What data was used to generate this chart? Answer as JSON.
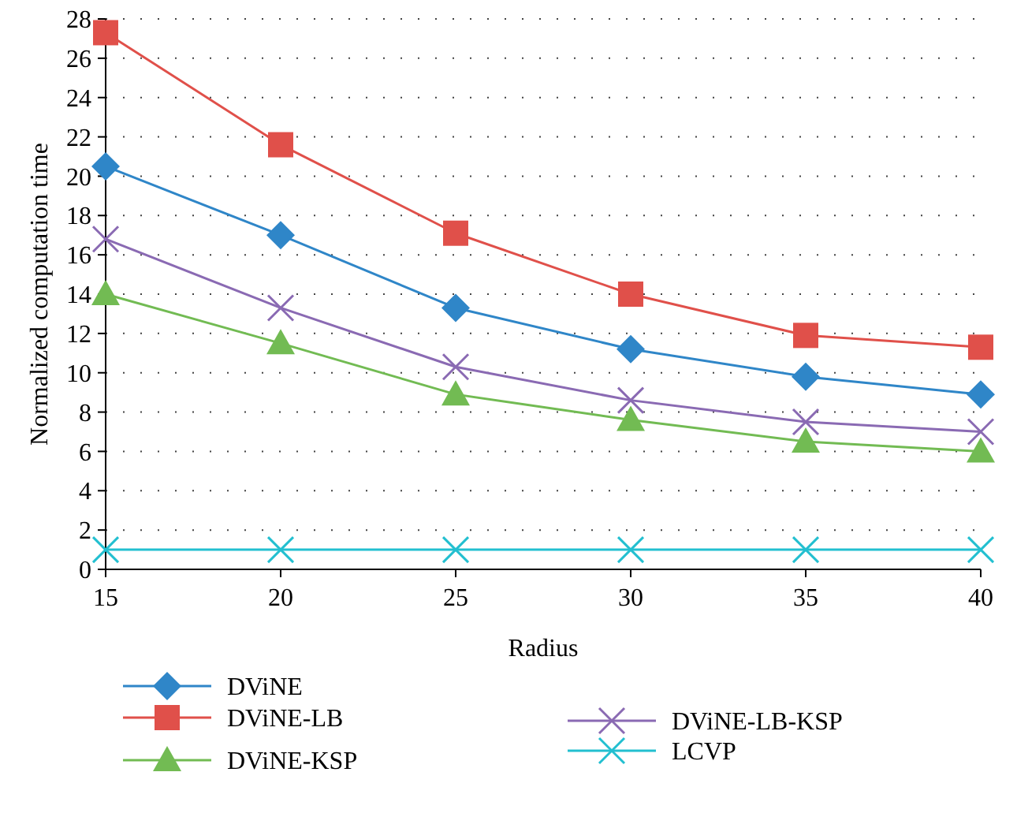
{
  "chart_data": {
    "type": "line",
    "xlabel": "Radius",
    "ylabel": "Normalized computation time",
    "x": [
      15,
      20,
      25,
      30,
      35,
      40
    ],
    "xlim": [
      15,
      40
    ],
    "xticks": [
      15,
      20,
      25,
      30,
      35,
      40
    ],
    "ylim": [
      0,
      28
    ],
    "yticks": [
      0,
      2,
      4,
      6,
      8,
      10,
      12,
      14,
      16,
      18,
      20,
      22,
      24,
      26,
      28
    ],
    "grid": "y",
    "legend": "bottom",
    "series": [
      {
        "name": "DViNE",
        "color": "#2f86c8",
        "marker": "diamond",
        "values": [
          20.5,
          17.0,
          13.3,
          11.2,
          9.8,
          8.9
        ]
      },
      {
        "name": "DViNE-LB",
        "color": "#e0504a",
        "marker": "square",
        "values": [
          27.3,
          21.6,
          17.1,
          14.0,
          11.9,
          11.3
        ]
      },
      {
        "name": "DViNE-KSP",
        "color": "#72bb53",
        "marker": "triangle",
        "values": [
          14.0,
          11.5,
          8.9,
          7.6,
          6.5,
          6.0
        ]
      },
      {
        "name": "DViNE-LB-KSP",
        "color": "#8a6ab3",
        "marker": "cross",
        "values": [
          16.8,
          13.3,
          10.3,
          8.6,
          7.5,
          7.0
        ]
      },
      {
        "name": "LCVP",
        "color": "#22bfd0",
        "marker": "cross",
        "values": [
          1,
          1,
          1,
          1,
          1,
          1
        ]
      }
    ]
  }
}
